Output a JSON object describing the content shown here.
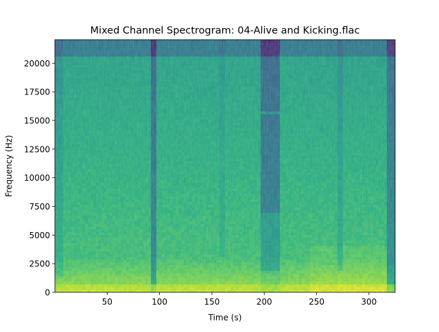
{
  "chart_data": {
    "type": "heatmap",
    "title": "Mixed Channel Spectrogram: 04-Alive and Kicking.flac",
    "xlabel": "Time (s)",
    "ylabel": "Frequency (Hz)",
    "xlim": [
      0,
      325
    ],
    "ylim": [
      0,
      22050
    ],
    "x_ticks": [
      50,
      100,
      150,
      200,
      250,
      300
    ],
    "y_ticks": [
      0,
      2500,
      5000,
      7500,
      10000,
      12500,
      15000,
      17500,
      20000
    ],
    "x_tick_labels": [
      "50",
      "100",
      "150",
      "200",
      "250",
      "300"
    ],
    "y_tick_labels": [
      "0",
      "2500",
      "5000",
      "7500",
      "10000",
      "12500",
      "15000",
      "17500",
      "20000"
    ],
    "colormap": "viridis",
    "grid": false,
    "colors": {
      "background": "#ffffff",
      "spine": "#000000",
      "low_energy": "#2a788e",
      "mid_energy": "#22a884",
      "high_energy": "#bddf26"
    }
  }
}
